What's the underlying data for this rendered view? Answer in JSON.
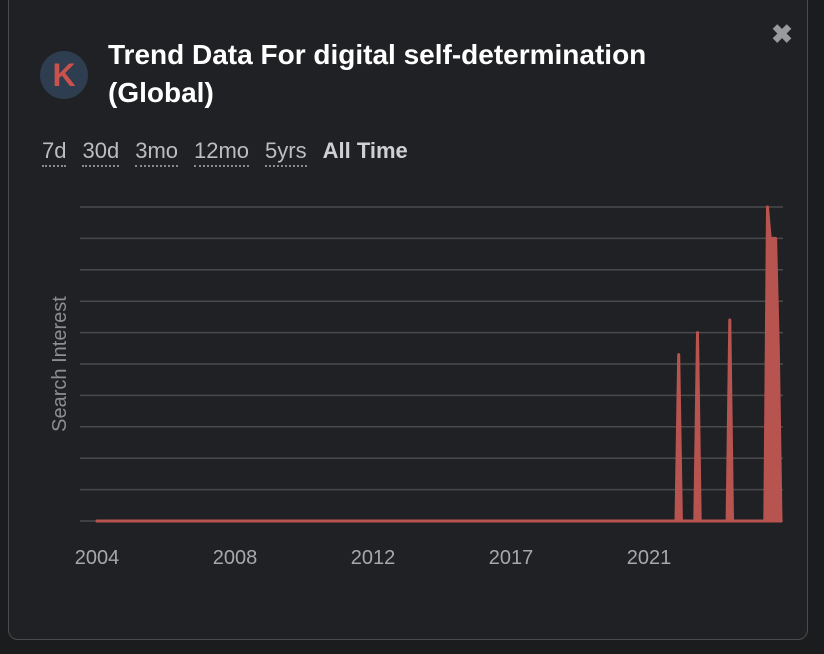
{
  "title": "Trend Data For digital self-determination (Global)",
  "logo_letter": "K",
  "close_icon": "close-x-icon",
  "ranges": [
    "7d",
    "30d",
    "3mo",
    "12mo",
    "5yrs",
    "All Time"
  ],
  "active_range": "All Time",
  "colors": {
    "series": "#b85450",
    "grid": "#4a4a4c",
    "background": "#202124",
    "logo_bg": "#2e3d4f"
  },
  "chart_data": {
    "type": "area",
    "ylabel": "Search Interest",
    "xlabel": "",
    "ylim": [
      0,
      100
    ],
    "y_tick_labels_shown": false,
    "grid": true,
    "x_tick_labels": [
      "2004",
      "2008",
      "2012",
      "2017",
      "2021"
    ],
    "x_range": [
      "2004-01",
      "2025-03"
    ],
    "points": [
      [
        "2004-01",
        0
      ],
      [
        "2021-12",
        0
      ],
      [
        "2022-01",
        53
      ],
      [
        "2022-02",
        0
      ],
      [
        "2022-07",
        0
      ],
      [
        "2022-08",
        60
      ],
      [
        "2022-09",
        0
      ],
      [
        "2023-07",
        0
      ],
      [
        "2023-08",
        64
      ],
      [
        "2023-09",
        0
      ],
      [
        "2024-09",
        0
      ],
      [
        "2024-10",
        100
      ],
      [
        "2024-11",
        90
      ],
      [
        "2024-12",
        90
      ],
      [
        "2025-01",
        90
      ],
      [
        "2025-02",
        55
      ],
      [
        "2025-03",
        0
      ]
    ]
  }
}
